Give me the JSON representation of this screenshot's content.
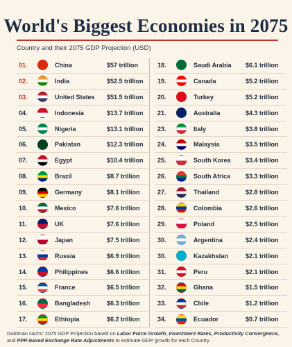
{
  "title": "World's Biggest Economies in 2075",
  "subtitle": "Country and their 2075 GDP Projection (USD)",
  "left": [
    {
      "rank": "01.",
      "country": "China",
      "gdp": "$57 trillion",
      "flag": "china-flag",
      "colors": [
        "#de2910",
        "#de2910"
      ],
      "top": true
    },
    {
      "rank": "02.",
      "country": "India",
      "gdp": "$52.5 trillion",
      "flag": "india-flag",
      "colors": [
        "#ff9933",
        "#ffffff",
        "#138808"
      ],
      "top": true
    },
    {
      "rank": "03.",
      "country": "United States",
      "gdp": "$51.5 trillion",
      "flag": "usa-flag",
      "colors": [
        "#b22234",
        "#ffffff",
        "#3c3b6e"
      ],
      "top": true
    },
    {
      "rank": "04.",
      "country": "Indonesia",
      "gdp": "$13.7 trillion",
      "flag": "indonesia-flag",
      "colors": [
        "#ce1126",
        "#ffffff"
      ]
    },
    {
      "rank": "05.",
      "country": "Nigeria",
      "gdp": "$13.1 trillion",
      "flag": "nigeria-flag",
      "colors": [
        "#008751",
        "#ffffff",
        "#008751"
      ]
    },
    {
      "rank": "06.",
      "country": "Pakistan",
      "gdp": "$12.3 trillion",
      "flag": "pakistan-flag",
      "colors": [
        "#01411c",
        "#01411c"
      ]
    },
    {
      "rank": "07.",
      "country": "Egypt",
      "gdp": "$10.4 trillion",
      "flag": "egypt-flag",
      "colors": [
        "#ce1126",
        "#ffffff",
        "#000000"
      ]
    },
    {
      "rank": "08.",
      "country": "Brazil",
      "gdp": "$8.7 trillion",
      "flag": "brazil-flag",
      "colors": [
        "#009c3b",
        "#ffdf00",
        "#002776"
      ]
    },
    {
      "rank": "09.",
      "country": "Germany",
      "gdp": "$8.1 trillion",
      "flag": "germany-flag",
      "colors": [
        "#000000",
        "#dd0000",
        "#ffce00"
      ]
    },
    {
      "rank": "10.",
      "country": "Mexico",
      "gdp": "$7.6 trillion",
      "flag": "mexico-flag",
      "colors": [
        "#006847",
        "#ffffff",
        "#ce1126"
      ]
    },
    {
      "rank": "11.",
      "country": "UK",
      "gdp": "$7.6 trillion",
      "flag": "uk-flag",
      "colors": [
        "#012169",
        "#c8102e"
      ]
    },
    {
      "rank": "12.",
      "country": "Japan",
      "gdp": "$7.5 trillion",
      "flag": "japan-flag",
      "colors": [
        "#ffffff",
        "#bc002d"
      ]
    },
    {
      "rank": "13.",
      "country": "Russia",
      "gdp": "$6.9 trillion",
      "flag": "russia-flag",
      "colors": [
        "#ffffff",
        "#0039a6",
        "#d52b1e"
      ]
    },
    {
      "rank": "14.",
      "country": "Philippines",
      "gdp": "$6.6 trillion",
      "flag": "philippines-flag",
      "colors": [
        "#0038a8",
        "#ce1126"
      ]
    },
    {
      "rank": "15.",
      "country": "France",
      "gdp": "$6.5 trillion",
      "flag": "france-flag",
      "colors": [
        "#0055a4",
        "#ffffff",
        "#ef4135"
      ]
    },
    {
      "rank": "16.",
      "country": "Bangladesh",
      "gdp": "$6.3 trillion",
      "flag": "bangladesh-flag",
      "colors": [
        "#006a4e",
        "#f42a41"
      ]
    },
    {
      "rank": "17.",
      "country": "Ethiopia",
      "gdp": "$6.2 trillion",
      "flag": "ethiopia-flag",
      "colors": [
        "#078930",
        "#fcdd09",
        "#da121a"
      ]
    }
  ],
  "right": [
    {
      "rank": "18.",
      "country": "Saudi Arabia",
      "gdp": "$6.1 trillion",
      "flag": "saudi-arabia-flag",
      "colors": [
        "#006c35",
        "#006c35"
      ]
    },
    {
      "rank": "19.",
      "country": "Canada",
      "gdp": "$5.2 trillion",
      "flag": "canada-flag",
      "colors": [
        "#ff0000",
        "#ffffff",
        "#ff0000"
      ]
    },
    {
      "rank": "20.",
      "country": "Turkey",
      "gdp": "$5.2 trillion",
      "flag": "turkey-flag",
      "colors": [
        "#e30a17",
        "#e30a17"
      ]
    },
    {
      "rank": "21.",
      "country": "Australia",
      "gdp": "$4.3 trillion",
      "flag": "australia-flag",
      "colors": [
        "#012169",
        "#012169"
      ]
    },
    {
      "rank": "23.",
      "country": "Italy",
      "gdp": "$3.8 trillion",
      "flag": "italy-flag",
      "colors": [
        "#009246",
        "#ffffff",
        "#ce2b37"
      ]
    },
    {
      "rank": "24.",
      "country": "Malaysia",
      "gdp": "$3.5 trillion",
      "flag": "malaysia-flag",
      "colors": [
        "#cc0001",
        "#ffffff",
        "#010066"
      ]
    },
    {
      "rank": "25.",
      "country": "South Korea",
      "gdp": "$3.4 trillion",
      "flag": "south-korea-flag",
      "colors": [
        "#ffffff",
        "#cd2e3a"
      ]
    },
    {
      "rank": "26.",
      "country": "South Africa",
      "gdp": "$3.3 trillion",
      "flag": "south-africa-flag",
      "colors": [
        "#de3831",
        "#007a4d",
        "#002395"
      ]
    },
    {
      "rank": "27.",
      "country": "Thailand",
      "gdp": "$2.8 trillion",
      "flag": "thailand-flag",
      "colors": [
        "#a51931",
        "#f4f5f8",
        "#2d2a4a"
      ]
    },
    {
      "rank": "28.",
      "country": "Colombia",
      "gdp": "$2.6 trillion",
      "flag": "colombia-flag",
      "colors": [
        "#fcd116",
        "#003893",
        "#ce1126"
      ]
    },
    {
      "rank": "29.",
      "country": "Poland",
      "gdp": "$2.5 trillion",
      "flag": "poland-flag",
      "colors": [
        "#ffffff",
        "#dc143c"
      ]
    },
    {
      "rank": "30.",
      "country": "Argentina",
      "gdp": "$2.4 trillion",
      "flag": "argentina-flag",
      "colors": [
        "#74acdf",
        "#ffffff",
        "#74acdf"
      ]
    },
    {
      "rank": "30.",
      "country": "Kazakhstan",
      "gdp": "$2.1 trillion",
      "flag": "kazakhstan-flag",
      "colors": [
        "#00afca",
        "#00afca"
      ]
    },
    {
      "rank": "31.",
      "country": "Peru",
      "gdp": "$2.1 trillion",
      "flag": "peru-flag",
      "colors": [
        "#d91023",
        "#ffffff",
        "#d91023"
      ]
    },
    {
      "rank": "32.",
      "country": "Ghana",
      "gdp": "$1.5 trillion",
      "flag": "ghana-flag",
      "colors": [
        "#ce1126",
        "#fcd116",
        "#006b3f"
      ]
    },
    {
      "rank": "33.",
      "country": "Chile",
      "gdp": "$1.2 trillion",
      "flag": "chile-flag",
      "colors": [
        "#0039a6",
        "#ffffff",
        "#d52b1e"
      ]
    },
    {
      "rank": "34.",
      "country": "Ecuador",
      "gdp": "$0.7 trillion",
      "flag": "ecuador-flag",
      "colors": [
        "#ffdd00",
        "#034ea2",
        "#ed1c24"
      ]
    }
  ],
  "footer": {
    "p1": "Goldman sachs' 2075 GDP Projection based on ",
    "b1": "Labor Force Growth, Investment Rates, Productivity Convergence,",
    "p2": " and ",
    "b2": "PPP-based Exchange Rate Adjustments",
    "p3": " to estimate GDP growth for each Country."
  }
}
